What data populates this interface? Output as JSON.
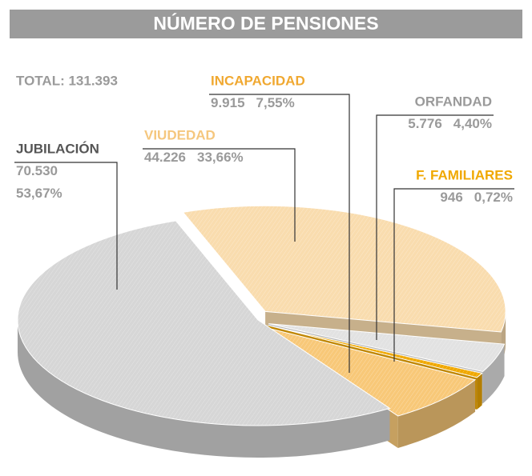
{
  "chart_data": {
    "type": "pie",
    "title": "NÚMERO DE PENSIONES",
    "total": "TOTAL: 131.393",
    "categories": [
      "VIUDEDAD",
      "ORFANDAD",
      "F. FAMILIARES",
      "INCAPACIDAD",
      "JUBILACIÓN"
    ],
    "values": [
      44226,
      5776,
      946,
      9915,
      70530
    ],
    "value_labels": [
      "44.226",
      "5.776",
      "946",
      "9.915",
      "70.530"
    ],
    "shares": [
      33.66,
      4.4,
      0.72,
      7.55,
      53.67
    ],
    "share_labels": [
      "33,66%",
      "4,40%",
      "0,72%",
      "7,55%",
      "53,67%"
    ],
    "colors": [
      "#f9dcae",
      "#e2e2e2",
      "#f0a800",
      "#f8c878",
      "#d6d6d6"
    ],
    "label_colors": [
      "#f5c77e",
      "#9a9a9a",
      "#f0a800",
      "#f0a830",
      "#555555"
    ]
  }
}
